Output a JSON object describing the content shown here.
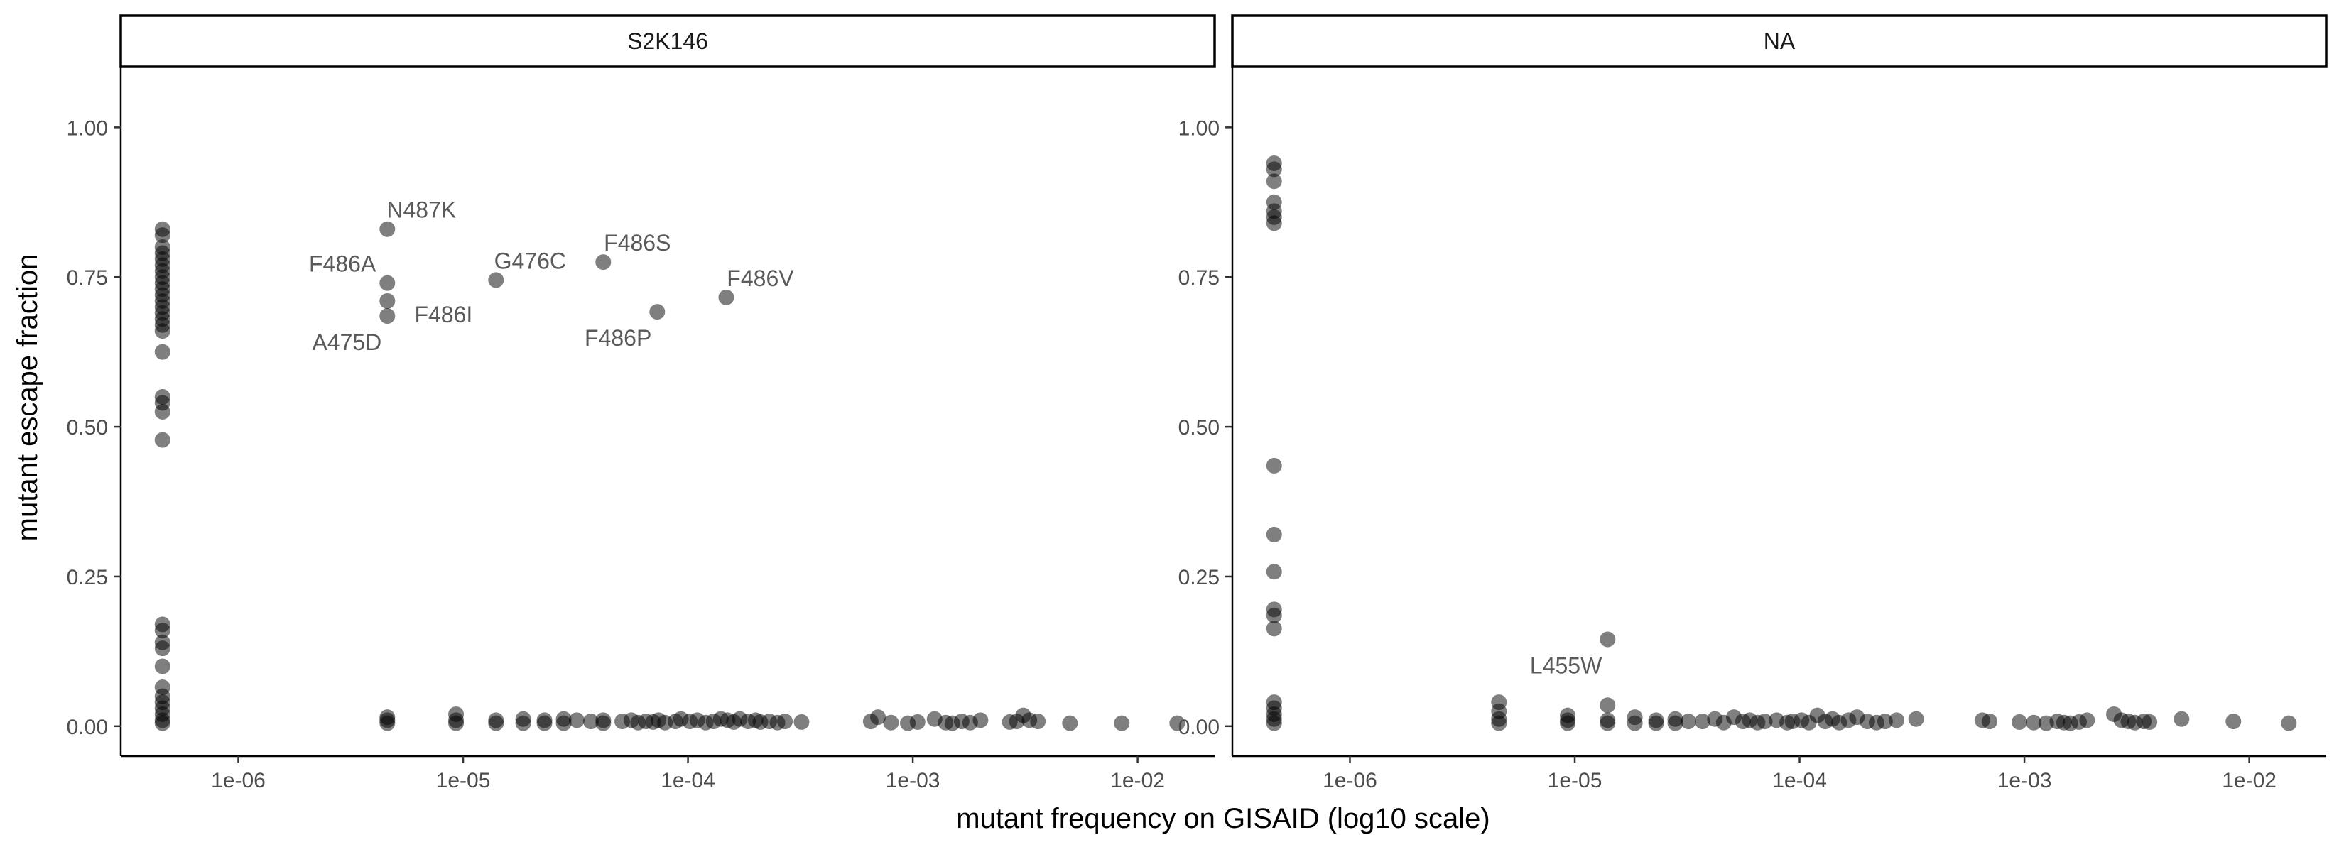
{
  "chart_data": {
    "type": "scatter",
    "title": "",
    "xlabel": "mutant frequency on GISAID (log10 scale)",
    "ylabel": "mutant escape fraction",
    "x_scale": "log10",
    "xlim": [
      3e-07,
      0.022
    ],
    "ylim": [
      -0.05,
      1.1
    ],
    "x_ticks": [
      1e-06,
      1e-05,
      0.0001,
      0.001,
      0.01
    ],
    "x_tick_labels": [
      "1e-06",
      "1e-05",
      "1e-04",
      "1e-03",
      "1e-02"
    ],
    "y_ticks": [
      0,
      0.25,
      0.5,
      0.75,
      1.0
    ],
    "y_tick_labels": [
      "0.00",
      "0.25",
      "0.50",
      "0.75",
      "1.00"
    ],
    "grid": false,
    "point_color": "#000000",
    "label_color": "#5a5a5a",
    "panels": [
      {
        "strip": "S2K146",
        "labels": [
          {
            "text": "N487K",
            "x": 4.6e-06,
            "y": 0.83,
            "pos": "above"
          },
          {
            "text": "F486A",
            "x": 4.6e-06,
            "y": 0.74,
            "pos": "left"
          },
          {
            "text": "A475D",
            "x": 4.6e-06,
            "y": 0.685,
            "pos": "below-left"
          },
          {
            "text": "F486I",
            "x": 4.6e-06,
            "y": 0.71,
            "pos": "below-right"
          },
          {
            "text": "G476C",
            "x": 1.4e-05,
            "y": 0.745,
            "pos": "above"
          },
          {
            "text": "F486S",
            "x": 4.2e-05,
            "y": 0.775,
            "pos": "above"
          },
          {
            "text": "F486P",
            "x": 7.3e-05,
            "y": 0.692,
            "pos": "below-left"
          },
          {
            "text": "F486V",
            "x": 0.000148,
            "y": 0.716,
            "pos": "above"
          }
        ],
        "points": [
          [
            4.6e-07,
            0.83
          ],
          [
            4.6e-07,
            0.82
          ],
          [
            4.6e-07,
            0.8
          ],
          [
            4.6e-07,
            0.79
          ],
          [
            4.6e-07,
            0.78
          ],
          [
            4.6e-07,
            0.77
          ],
          [
            4.6e-07,
            0.76
          ],
          [
            4.6e-07,
            0.75
          ],
          [
            4.6e-07,
            0.74
          ],
          [
            4.6e-07,
            0.73
          ],
          [
            4.6e-07,
            0.72
          ],
          [
            4.6e-07,
            0.71
          ],
          [
            4.6e-07,
            0.7
          ],
          [
            4.6e-07,
            0.69
          ],
          [
            4.6e-07,
            0.68
          ],
          [
            4.6e-07,
            0.67
          ],
          [
            4.6e-07,
            0.66
          ],
          [
            4.6e-07,
            0.625
          ],
          [
            4.6e-07,
            0.55
          ],
          [
            4.6e-07,
            0.54
          ],
          [
            4.6e-07,
            0.525
          ],
          [
            4.6e-07,
            0.478
          ],
          [
            4.6e-07,
            0.17
          ],
          [
            4.6e-07,
            0.16
          ],
          [
            4.6e-07,
            0.14
          ],
          [
            4.6e-07,
            0.13
          ],
          [
            4.6e-07,
            0.1
          ],
          [
            4.6e-07,
            0.065
          ],
          [
            4.6e-07,
            0.05
          ],
          [
            4.6e-07,
            0.04
          ],
          [
            4.6e-07,
            0.03
          ],
          [
            4.6e-07,
            0.02
          ],
          [
            4.6e-07,
            0.01
          ],
          [
            4.6e-07,
            0.005
          ],
          [
            4.6e-06,
            0.83
          ],
          [
            4.6e-06,
            0.74
          ],
          [
            4.6e-06,
            0.71
          ],
          [
            4.6e-06,
            0.685
          ],
          [
            1.4e-05,
            0.745
          ],
          [
            4.2e-05,
            0.775
          ],
          [
            7.3e-05,
            0.692
          ],
          [
            0.000148,
            0.716
          ],
          [
            4.6e-06,
            0.015
          ],
          [
            4.6e-06,
            0.01
          ],
          [
            4.6e-06,
            0.005
          ],
          [
            9.3e-06,
            0.02
          ],
          [
            9.3e-06,
            0.01
          ],
          [
            9.3e-06,
            0.005
          ],
          [
            1.4e-05,
            0.01
          ],
          [
            1.4e-05,
            0.005
          ],
          [
            1.85e-05,
            0.012
          ],
          [
            1.85e-05,
            0.005
          ],
          [
            2.3e-05,
            0.01
          ],
          [
            2.3e-05,
            0.005
          ],
          [
            2.8e-05,
            0.012
          ],
          [
            2.8e-05,
            0.005
          ],
          [
            3.2e-05,
            0.01
          ],
          [
            3.7e-05,
            0.008
          ],
          [
            4.2e-05,
            0.01
          ],
          [
            4.2e-05,
            0.005
          ],
          [
            5.1e-05,
            0.008
          ],
          [
            5.6e-05,
            0.01
          ],
          [
            6e-05,
            0.006
          ],
          [
            6.5e-05,
            0.008
          ],
          [
            7e-05,
            0.007
          ],
          [
            7.4e-05,
            0.01
          ],
          [
            7.9e-05,
            0.006
          ],
          [
            8.8e-05,
            0.008
          ],
          [
            9.3e-05,
            0.012
          ],
          [
            0.000102,
            0.008
          ],
          [
            0.00011,
            0.01
          ],
          [
            0.00012,
            0.006
          ],
          [
            0.00013,
            0.008
          ],
          [
            0.00014,
            0.012
          ],
          [
            0.00015,
            0.01
          ],
          [
            0.00016,
            0.007
          ],
          [
            0.00017,
            0.012
          ],
          [
            0.000185,
            0.008
          ],
          [
            0.0002,
            0.01
          ],
          [
            0.00021,
            0.007
          ],
          [
            0.00023,
            0.008
          ],
          [
            0.00025,
            0.006
          ],
          [
            0.00027,
            0.008
          ],
          [
            0.00032,
            0.007
          ],
          [
            0.00065,
            0.008
          ],
          [
            0.0007,
            0.015
          ],
          [
            0.0008,
            0.006
          ],
          [
            0.00095,
            0.005
          ],
          [
            0.00105,
            0.007
          ],
          [
            0.00125,
            0.012
          ],
          [
            0.0014,
            0.006
          ],
          [
            0.0015,
            0.005
          ],
          [
            0.00165,
            0.008
          ],
          [
            0.0018,
            0.006
          ],
          [
            0.002,
            0.01
          ],
          [
            0.0027,
            0.007
          ],
          [
            0.0029,
            0.008
          ],
          [
            0.0031,
            0.018
          ],
          [
            0.0033,
            0.01
          ],
          [
            0.0036,
            0.008
          ],
          [
            0.005,
            0.005
          ],
          [
            0.0085,
            0.005
          ],
          [
            0.015,
            0.005
          ]
        ]
      },
      {
        "strip": "NA",
        "labels": [
          {
            "text": "L455W",
            "x": 1.4e-05,
            "y": 0.145,
            "pos": "below-left"
          }
        ],
        "points": [
          [
            4.6e-07,
            0.94
          ],
          [
            4.6e-07,
            0.93
          ],
          [
            4.6e-07,
            0.91
          ],
          [
            4.6e-07,
            0.875
          ],
          [
            4.6e-07,
            0.86
          ],
          [
            4.6e-07,
            0.85
          ],
          [
            4.6e-07,
            0.84
          ],
          [
            4.6e-07,
            0.435
          ],
          [
            4.6e-07,
            0.32
          ],
          [
            4.6e-07,
            0.258
          ],
          [
            4.6e-07,
            0.195
          ],
          [
            4.6e-07,
            0.185
          ],
          [
            4.6e-07,
            0.163
          ],
          [
            4.6e-07,
            0.04
          ],
          [
            4.6e-07,
            0.03
          ],
          [
            4.6e-07,
            0.02
          ],
          [
            4.6e-07,
            0.012
          ],
          [
            4.6e-07,
            0.005
          ],
          [
            1.4e-05,
            0.145
          ],
          [
            4.6e-06,
            0.04
          ],
          [
            4.6e-06,
            0.025
          ],
          [
            4.6e-06,
            0.012
          ],
          [
            4.6e-06,
            0.005
          ],
          [
            9.3e-06,
            0.018
          ],
          [
            9.3e-06,
            0.01
          ],
          [
            9.3e-06,
            0.005
          ],
          [
            1.4e-05,
            0.035
          ],
          [
            1.4e-05,
            0.01
          ],
          [
            1.4e-05,
            0.005
          ],
          [
            1.85e-05,
            0.015
          ],
          [
            1.85e-05,
            0.005
          ],
          [
            2.3e-05,
            0.01
          ],
          [
            2.3e-05,
            0.005
          ],
          [
            2.8e-05,
            0.012
          ],
          [
            2.8e-05,
            0.005
          ],
          [
            3.2e-05,
            0.008
          ],
          [
            3.7e-05,
            0.008
          ],
          [
            4.2e-05,
            0.012
          ],
          [
            4.6e-05,
            0.006
          ],
          [
            5.1e-05,
            0.015
          ],
          [
            5.6e-05,
            0.008
          ],
          [
            6e-05,
            0.01
          ],
          [
            6.5e-05,
            0.006
          ],
          [
            7e-05,
            0.008
          ],
          [
            7.9e-05,
            0.01
          ],
          [
            8.8e-05,
            0.006
          ],
          [
            9.3e-05,
            0.008
          ],
          [
            0.000102,
            0.01
          ],
          [
            0.00011,
            0.006
          ],
          [
            0.00012,
            0.018
          ],
          [
            0.00013,
            0.008
          ],
          [
            0.00014,
            0.012
          ],
          [
            0.00015,
            0.006
          ],
          [
            0.000165,
            0.01
          ],
          [
            0.00018,
            0.015
          ],
          [
            0.0002,
            0.008
          ],
          [
            0.00022,
            0.006
          ],
          [
            0.00024,
            0.008
          ],
          [
            0.00027,
            0.01
          ],
          [
            0.00033,
            0.012
          ],
          [
            0.00065,
            0.01
          ],
          [
            0.0007,
            0.008
          ],
          [
            0.00095,
            0.007
          ],
          [
            0.0011,
            0.006
          ],
          [
            0.00125,
            0.005
          ],
          [
            0.0014,
            0.008
          ],
          [
            0.0015,
            0.006
          ],
          [
            0.0016,
            0.005
          ],
          [
            0.00175,
            0.007
          ],
          [
            0.0019,
            0.01
          ],
          [
            0.0025,
            0.02
          ],
          [
            0.0027,
            0.01
          ],
          [
            0.0029,
            0.008
          ],
          [
            0.0031,
            0.006
          ],
          [
            0.0034,
            0.008
          ],
          [
            0.0036,
            0.007
          ],
          [
            0.005,
            0.012
          ],
          [
            0.0085,
            0.008
          ],
          [
            0.015,
            0.005
          ]
        ]
      }
    ]
  }
}
